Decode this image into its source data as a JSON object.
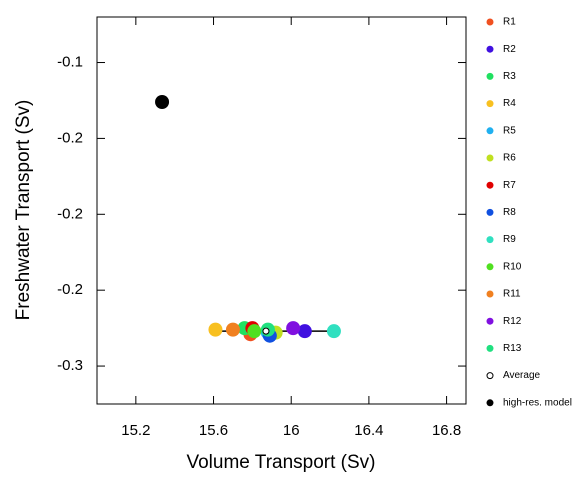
{
  "chart_data": {
    "type": "scatter",
    "xlabel": "Volume Transport (Sv)",
    "ylabel": "Freshwater Transport (Sv)",
    "xlim": [
      15.0,
      16.9
    ],
    "xticks": [
      15.2,
      15.6,
      16.0,
      16.4,
      16.8
    ],
    "ylim": [
      -0.325,
      -0.07
    ],
    "yticks": [
      -0.1,
      {
        "value": -0.15,
        "label": "-0.2"
      },
      -0.2,
      {
        "value": -0.25,
        "label": "-0.2"
      },
      -0.3
    ],
    "legend": "right",
    "series": [
      {
        "name": "R1",
        "color": "#f05020",
        "x": [
          15.79
        ],
        "y": [
          -0.279
        ]
      },
      {
        "name": "R2",
        "color": "#4010e0",
        "x": [
          16.07
        ],
        "y": [
          -0.277
        ]
      },
      {
        "name": "R3",
        "color": "#20e060",
        "x": [
          15.76
        ],
        "y": [
          -0.275
        ]
      },
      {
        "name": "R4",
        "color": "#f8c020",
        "x": [
          15.61
        ],
        "y": [
          -0.276
        ]
      },
      {
        "name": "R5",
        "color": "#20b0f0",
        "x": [
          15.88
        ],
        "y": [
          -0.278
        ]
      },
      {
        "name": "R6",
        "color": "#c0e020",
        "x": [
          15.92
        ],
        "y": [
          -0.278
        ]
      },
      {
        "name": "R7",
        "color": "#e00000",
        "x": [
          15.8
        ],
        "y": [
          -0.275
        ]
      },
      {
        "name": "R8",
        "color": "#1050e0",
        "x": [
          15.89
        ],
        "y": [
          -0.28
        ]
      },
      {
        "name": "R9",
        "color": "#30e0c0",
        "x": [
          16.22
        ],
        "y": [
          -0.277
        ]
      },
      {
        "name": "R10",
        "color": "#50e020",
        "x": [
          15.81
        ],
        "y": [
          -0.277
        ]
      },
      {
        "name": "R11",
        "color": "#f08020",
        "x": [
          15.7
        ],
        "y": [
          -0.276
        ]
      },
      {
        "name": "R12",
        "color": "#8010e0",
        "x": [
          16.01
        ],
        "y": [
          -0.275
        ]
      },
      {
        "name": "R13",
        "color": "#20e080",
        "x": [
          15.88
        ],
        "y": [
          -0.276
        ]
      },
      {
        "name": "Average",
        "color": "#000000",
        "hollow": true,
        "x": [
          15.87
        ],
        "y": [
          -0.277
        ]
      },
      {
        "name": "high-res. model",
        "color": "#000000",
        "x": [
          15.335
        ],
        "y": [
          -0.126
        ]
      }
    ]
  }
}
